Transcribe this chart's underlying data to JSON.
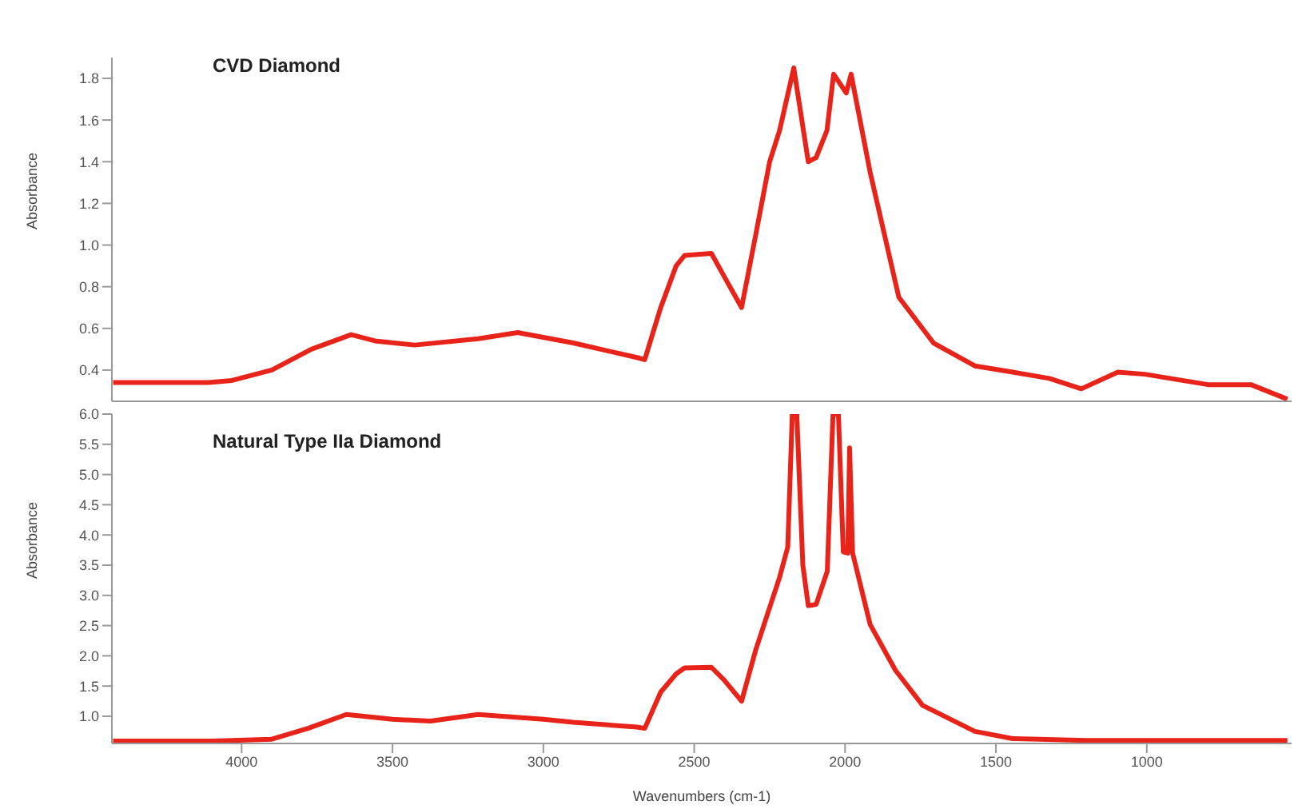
{
  "chart_data": [
    {
      "type": "line",
      "title": "CVD Diamond",
      "ylabel": "Absorbance",
      "tick_labels": "y",
      "x": [
        4426,
        4110,
        4032,
        3900,
        3769,
        3637,
        3558,
        3427,
        3216,
        3085,
        2901,
        2690,
        2664,
        2611,
        2560,
        2532,
        2443,
        2401,
        2343,
        2296,
        2250,
        2217,
        2170,
        2122,
        2096,
        2060,
        2038,
        1996,
        1980,
        1917,
        1822,
        1707,
        1570,
        1444,
        1323,
        1217,
        1096,
        1007,
        797,
        655,
        534
      ],
      "series": [
        {
          "color": "#e8231a",
          "values": [
            0.34,
            0.34,
            0.35,
            0.4,
            0.5,
            0.57,
            0.54,
            0.52,
            0.55,
            0.58,
            0.53,
            0.46,
            0.45,
            0.7,
            0.9,
            0.95,
            0.96,
            0.85,
            0.7,
            1.05,
            1.4,
            1.55,
            1.85,
            1.4,
            1.42,
            1.55,
            1.82,
            1.73,
            1.82,
            1.35,
            0.75,
            0.53,
            0.42,
            0.39,
            0.36,
            0.31,
            0.39,
            0.38,
            0.33,
            0.33,
            0.26
          ]
        }
      ],
      "xlim": [
        4430,
        520
      ],
      "ylim": [
        0.25,
        1.9
      ],
      "yticks": [
        0.4,
        0.6,
        0.8,
        {
          "value": 1.0,
          "label": "1.0"
        },
        1.2,
        1.4,
        1.6,
        1.8
      ]
    },
    {
      "type": "line",
      "title": "Natural Type IIa Diamond",
      "ylabel": "Absorbance",
      "xlabel": "Wavenumbers (cm-1)",
      "x": [
        4426,
        4100,
        3900,
        3780,
        3653,
        3500,
        3374,
        3216,
        3000,
        2901,
        2690,
        2664,
        2611,
        2560,
        2532,
        2443,
        2401,
        2343,
        2296,
        2217,
        2190,
        2175,
        2160,
        2140,
        2122,
        2096,
        2059,
        2040,
        2022,
        2006,
        1991,
        1985,
        1975,
        1917,
        1833,
        1743,
        1570,
        1444,
        1200,
        534
      ],
      "series": [
        {
          "color": "#e8231a",
          "values": [
            0.59,
            0.59,
            0.62,
            0.8,
            1.03,
            0.95,
            0.92,
            1.03,
            0.95,
            0.9,
            0.82,
            0.8,
            1.4,
            1.7,
            1.8,
            1.81,
            1.6,
            1.25,
            2.1,
            3.3,
            3.8,
            6.0,
            6.0,
            3.5,
            2.83,
            2.85,
            3.4,
            6.0,
            6.0,
            3.72,
            3.7,
            5.44,
            3.7,
            2.52,
            1.76,
            1.18,
            0.75,
            0.63,
            0.6,
            0.6
          ]
        }
      ],
      "xlim": [
        4430,
        520
      ],
      "ylim": [
        0.55,
        6.0
      ],
      "xticks": [
        4000,
        3500,
        3000,
        2500,
        2000,
        1500,
        1000
      ],
      "yticks": [
        {
          "value": 1.0,
          "label": "1.0"
        },
        1.5,
        {
          "value": 2.0,
          "label": "2.0"
        },
        2.5,
        {
          "value": 3.0,
          "label": "3.0"
        },
        3.5,
        {
          "value": 4.0,
          "label": "4.0"
        },
        4.5,
        {
          "value": 5.0,
          "label": "5.0"
        },
        5.5,
        {
          "value": 6.0,
          "label": "6.0"
        }
      ]
    }
  ]
}
